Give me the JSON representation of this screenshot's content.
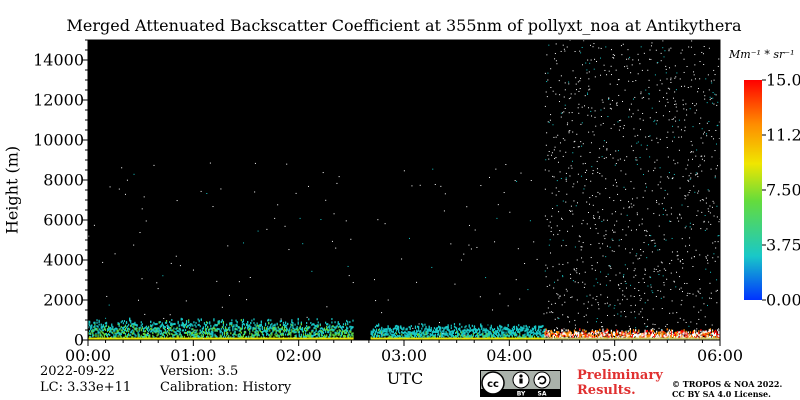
{
  "chart_data": {
    "type": "heatmap",
    "title": "Merged Attenuated Backscatter Coefficient at 355nm of pollyxt_noa at Antikythera",
    "xlabel": "UTC",
    "ylabel": "Height (m)",
    "x_range": [
      "00:00",
      "06:00"
    ],
    "ylim": [
      0,
      15000
    ],
    "x_tick_labels": [
      "00:00",
      "01:00",
      "02:00",
      "03:00",
      "04:00",
      "05:00",
      "06:00"
    ],
    "y_tick_labels": [
      "0",
      "2000",
      "4000",
      "6000",
      "8000",
      "10000",
      "12000",
      "14000"
    ],
    "colorbar": {
      "unit": "Mm⁻¹ * sr⁻¹",
      "range": [
        0,
        15
      ],
      "tick_labels": [
        "0.00",
        "3.75",
        "7.50",
        "11.25",
        "15.00"
      ],
      "colors": [
        "#0032ff",
        "#19c8c8",
        "#64dc3c",
        "#f0e600",
        "#ff8c00",
        "#ff0000"
      ]
    },
    "background_color": "#000000",
    "data_gap": [
      "02:31",
      "02:41"
    ],
    "features": [
      {
        "start": "00:00",
        "end": "02:31",
        "layer_top_m": 800,
        "level_mm_sr": [
          2,
          8
        ]
      },
      {
        "start": "02:41",
        "end": "04:20",
        "layer_top_m": 600,
        "level_mm_sr": [
          2,
          6
        ]
      },
      {
        "start": "04:20",
        "end": "06:00",
        "layer_top_m": 400,
        "noise_up_to_m": 15000
      }
    ]
  },
  "footer": {
    "date": "2022-09-22",
    "version": "Version: 3.5",
    "lc": "LC: 3.33e+11",
    "calibration": "Calibration: History",
    "preliminary_line1": "Preliminary",
    "preliminary_line2": "Results.",
    "copyright_line1": "© TROPOS & NOA 2022.",
    "copyright_line2": "CC BY SA 4.0 License.",
    "license_badge": {
      "by": "BY",
      "sa": "SA"
    }
  }
}
